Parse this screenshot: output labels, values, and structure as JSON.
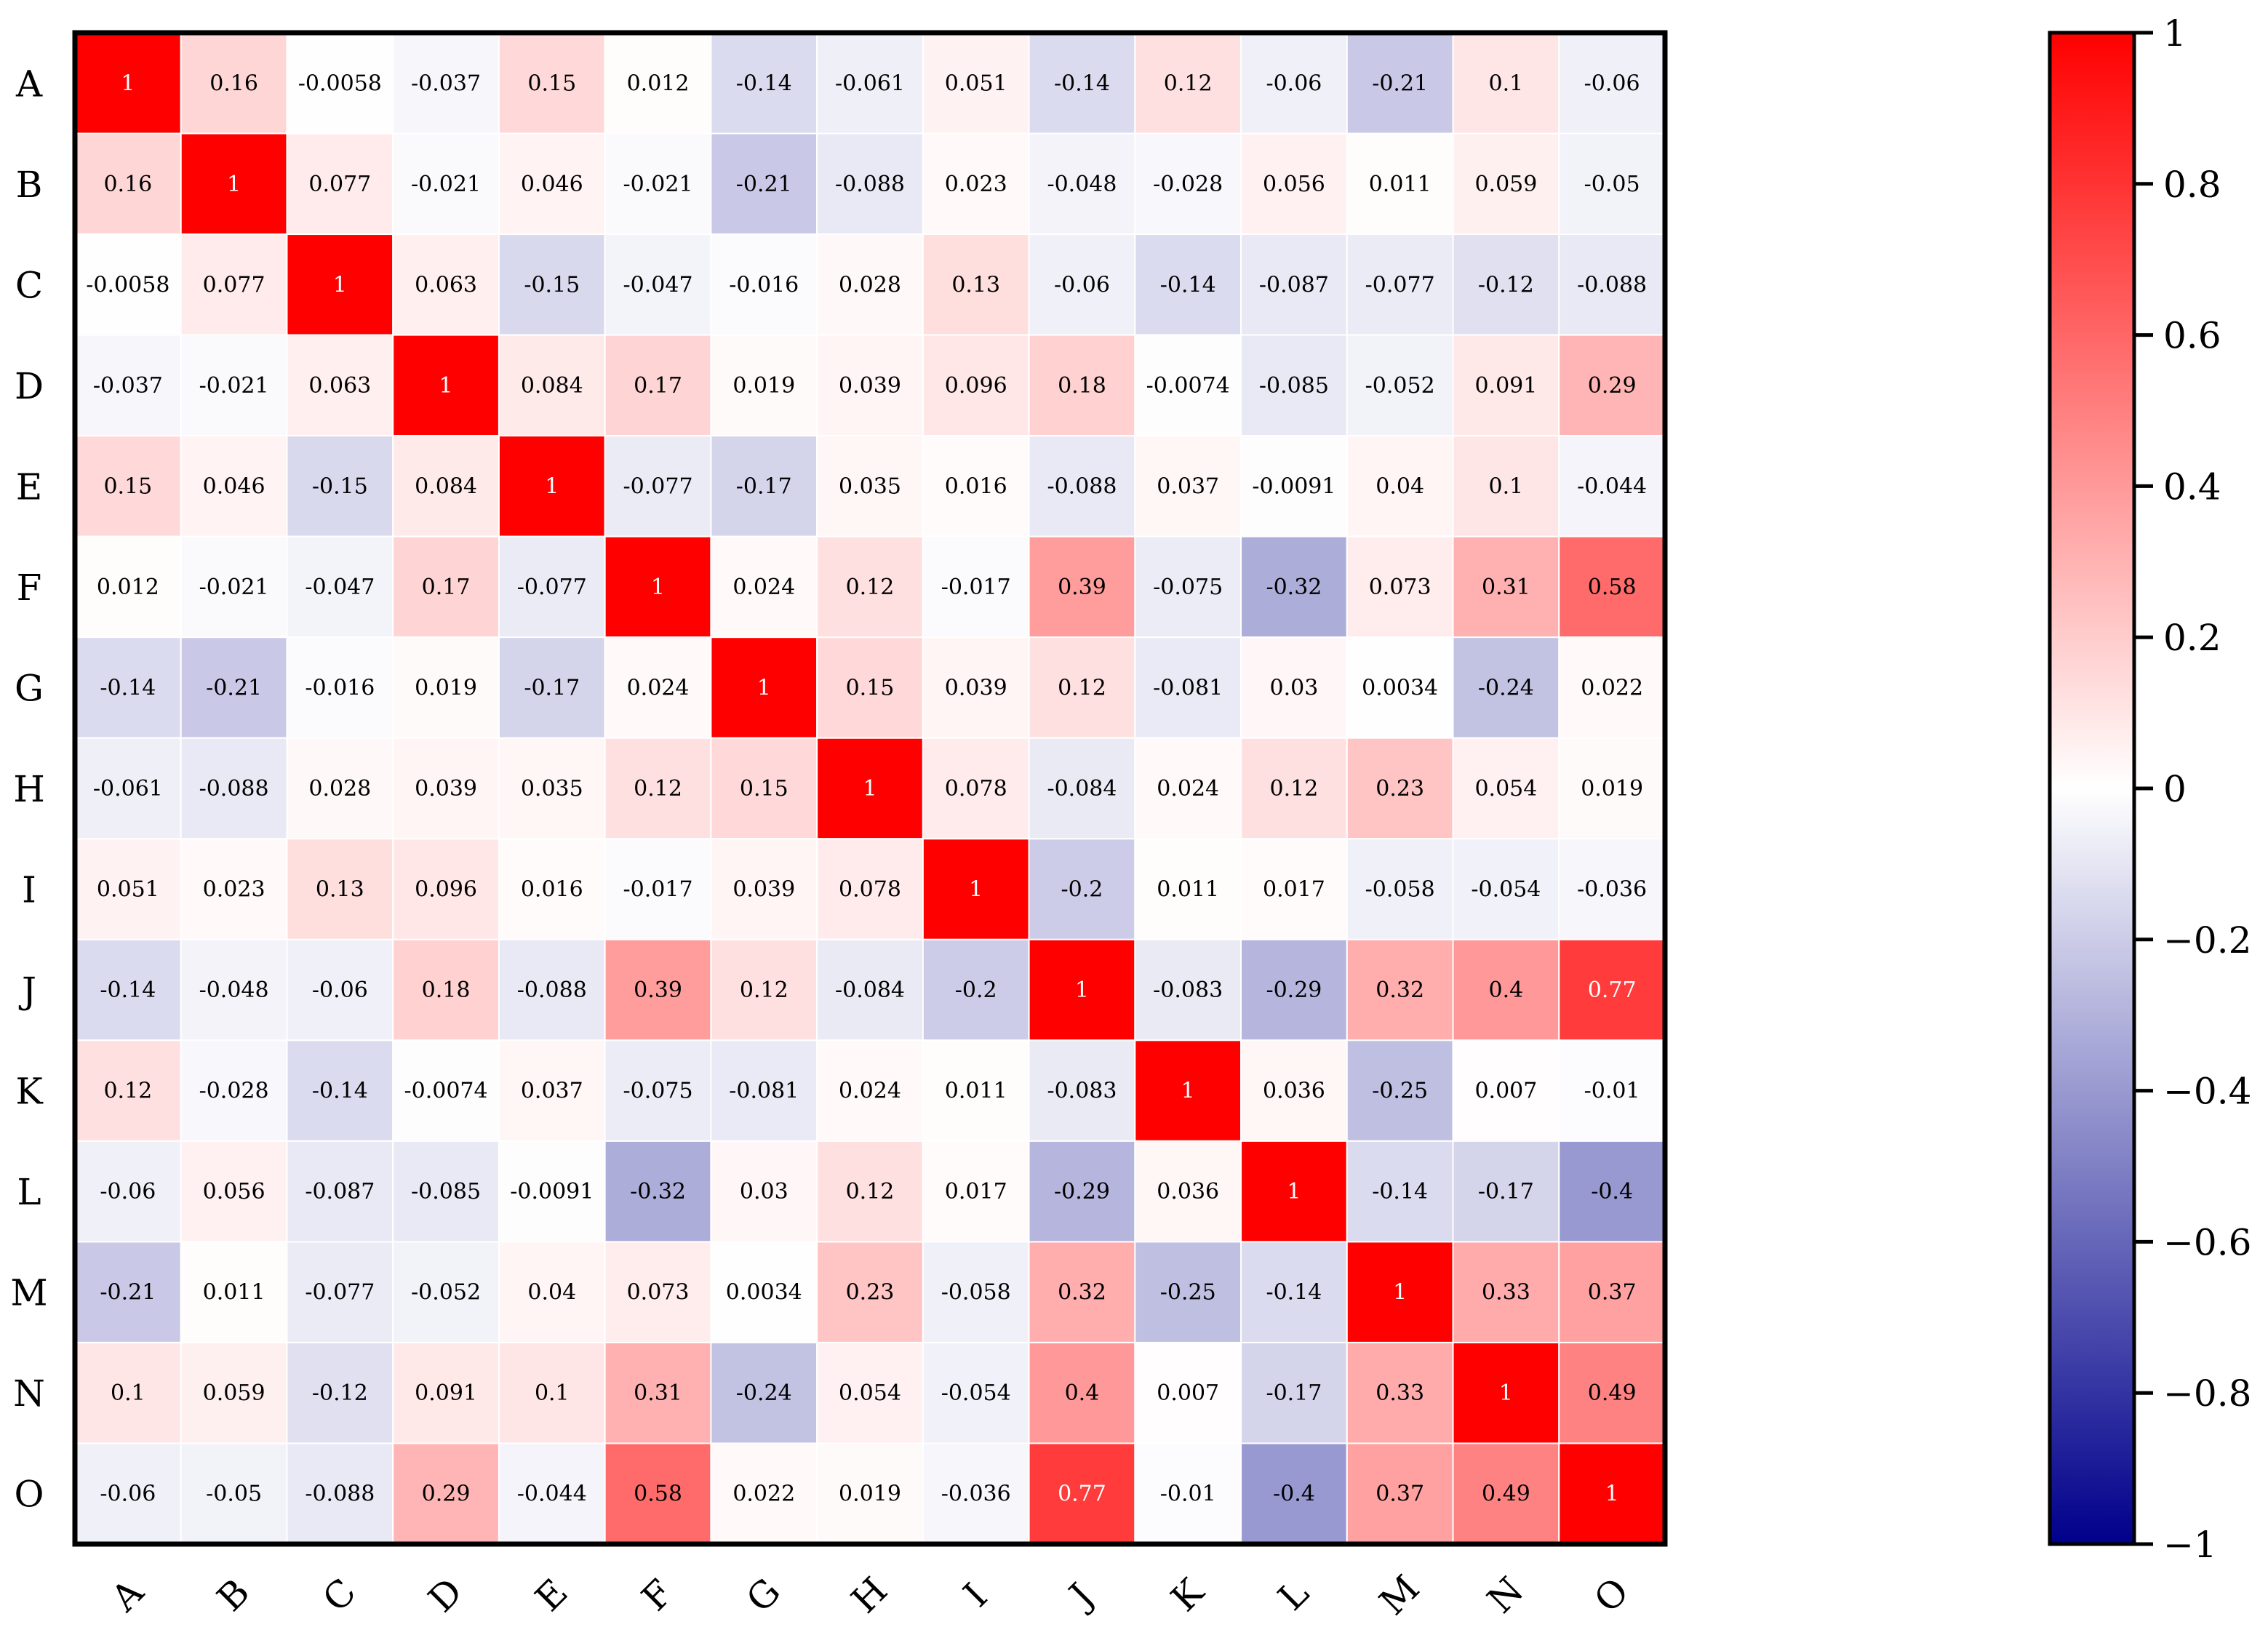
{
  "chart_data": {
    "type": "heatmap",
    "title": "",
    "xlabel": "",
    "ylabel": "",
    "row_labels": [
      "A",
      "B",
      "C",
      "D",
      "E",
      "F",
      "G",
      "H",
      "I",
      "J",
      "K",
      "L",
      "M",
      "N",
      "O"
    ],
    "col_labels": [
      "A",
      "B",
      "C",
      "D",
      "E",
      "F",
      "G",
      "H",
      "I",
      "J",
      "K",
      "L",
      "M",
      "N",
      "O"
    ],
    "values": [
      [
        1,
        0.16,
        -0.0058,
        -0.037,
        0.15,
        0.012,
        -0.14,
        -0.061,
        0.051,
        -0.14,
        0.12,
        -0.06,
        -0.21,
        0.1,
        -0.06
      ],
      [
        0.16,
        1,
        0.077,
        -0.021,
        0.046,
        -0.021,
        -0.21,
        -0.088,
        0.023,
        -0.048,
        -0.028,
        0.056,
        0.011,
        0.059,
        -0.05
      ],
      [
        -0.0058,
        0.077,
        1,
        0.063,
        -0.15,
        -0.047,
        -0.016,
        0.028,
        0.13,
        -0.06,
        -0.14,
        -0.087,
        -0.077,
        -0.12,
        -0.088
      ],
      [
        -0.037,
        -0.021,
        0.063,
        1,
        0.084,
        0.17,
        0.019,
        0.039,
        0.096,
        0.18,
        -0.0074,
        -0.085,
        -0.052,
        0.091,
        0.29
      ],
      [
        0.15,
        0.046,
        -0.15,
        0.084,
        1,
        -0.077,
        -0.17,
        0.035,
        0.016,
        -0.088,
        0.037,
        -0.0091,
        0.04,
        0.1,
        -0.044
      ],
      [
        0.012,
        -0.021,
        -0.047,
        0.17,
        -0.077,
        1,
        0.024,
        0.12,
        -0.017,
        0.39,
        -0.075,
        -0.32,
        0.073,
        0.31,
        0.58
      ],
      [
        -0.14,
        -0.21,
        -0.016,
        0.019,
        -0.17,
        0.024,
        1,
        0.15,
        0.039,
        0.12,
        -0.081,
        0.03,
        0.0034,
        -0.24,
        0.022
      ],
      [
        -0.061,
        -0.088,
        0.028,
        0.039,
        0.035,
        0.12,
        0.15,
        1,
        0.078,
        -0.084,
        0.024,
        0.12,
        0.23,
        0.054,
        0.019
      ],
      [
        0.051,
        0.023,
        0.13,
        0.096,
        0.016,
        -0.017,
        0.039,
        0.078,
        1,
        -0.2,
        0.011,
        0.017,
        -0.058,
        -0.054,
        -0.036
      ],
      [
        -0.14,
        -0.048,
        -0.06,
        0.18,
        -0.088,
        0.39,
        0.12,
        -0.084,
        -0.2,
        1,
        -0.083,
        -0.29,
        0.32,
        0.4,
        0.77
      ],
      [
        0.12,
        -0.028,
        -0.14,
        -0.0074,
        0.037,
        -0.075,
        -0.081,
        0.024,
        0.011,
        -0.083,
        1,
        0.036,
        -0.25,
        0.007,
        -0.01
      ],
      [
        -0.06,
        0.056,
        -0.087,
        -0.085,
        -0.0091,
        -0.32,
        0.03,
        0.12,
        0.017,
        -0.29,
        0.036,
        1,
        -0.14,
        -0.17,
        -0.4
      ],
      [
        -0.21,
        0.011,
        -0.077,
        -0.052,
        0.04,
        0.073,
        0.0034,
        0.23,
        -0.058,
        0.32,
        -0.25,
        -0.14,
        1,
        0.33,
        0.37
      ],
      [
        0.1,
        0.059,
        -0.12,
        0.091,
        0.1,
        0.31,
        -0.24,
        0.054,
        -0.054,
        0.4,
        0.007,
        -0.17,
        0.33,
        1,
        0.49
      ],
      [
        -0.06,
        -0.05,
        -0.088,
        0.29,
        -0.044,
        0.58,
        0.022,
        0.019,
        -0.036,
        0.77,
        -0.01,
        -0.4,
        0.37,
        0.49,
        1
      ]
    ],
    "colorbar": {
      "range": [
        -1,
        1
      ],
      "ticks": [
        1,
        0.8,
        0.6,
        0.4,
        0.2,
        0,
        -0.2,
        -0.4,
        -0.6,
        -0.8,
        -1
      ],
      "tick_labels": [
        "1",
        "0.8",
        "0.6",
        "0.4",
        "0.2",
        "0",
        "−0.2",
        "−0.4",
        "−0.6",
        "−0.8",
        "−1"
      ],
      "colors": {
        "high": "#ff0000",
        "mid": "#ffffff",
        "low": "#00008b"
      }
    },
    "grid": false,
    "legend": "colorbar-right"
  }
}
